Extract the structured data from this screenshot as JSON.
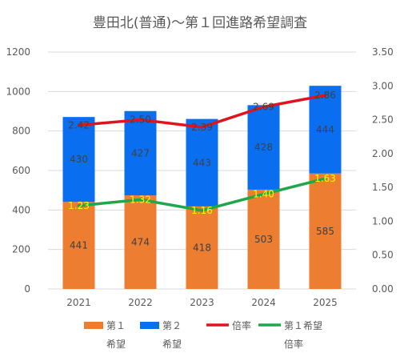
{
  "chart_data": {
    "type": "bar",
    "stacked": true,
    "title": "豊田北(普通)～第１回進路希望調査",
    "categories": [
      "2021",
      "2022",
      "2023",
      "2024",
      "2025"
    ],
    "series": [
      {
        "name": "第１希望",
        "axis": "left",
        "type": "bar",
        "color": "#ED7D31",
        "values": [
          441,
          474,
          418,
          503,
          585
        ]
      },
      {
        "name": "第２希望",
        "axis": "left",
        "type": "bar",
        "color": "#0A6EF0",
        "values": [
          430,
          427,
          443,
          428,
          444
        ]
      },
      {
        "name": "倍率",
        "axis": "right",
        "type": "line",
        "color": "#E0141E",
        "values": [
          2.42,
          2.5,
          2.39,
          2.69,
          2.86
        ],
        "labels": [
          "2.42",
          "2.50",
          "2.39",
          "2.69",
          "2.86"
        ]
      },
      {
        "name": "第１希望倍率",
        "axis": "right",
        "type": "line",
        "color": "#1EA84A",
        "values": [
          1.23,
          1.32,
          1.16,
          1.4,
          1.63
        ],
        "labels": [
          "1.23",
          "1.32",
          "1.16",
          "1.40",
          "1.63"
        ]
      }
    ],
    "y_left": {
      "min": 0,
      "max": 1200,
      "ticks": [
        "0",
        "200",
        "400",
        "600",
        "800",
        "1000",
        "1200"
      ]
    },
    "y_right": {
      "min": 0,
      "max": 3.5,
      "ticks": [
        "0.00",
        "0.50",
        "1.00",
        "1.50",
        "2.00",
        "2.50",
        "3.00",
        "3.50"
      ]
    },
    "grid": true,
    "legend_position": "bottom",
    "legend": [
      {
        "line1": "第１",
        "line2": "希望",
        "kind": "box",
        "color": "#ED7D31"
      },
      {
        "line1": "第２",
        "line2": "希望",
        "kind": "box",
        "color": "#0A6EF0"
      },
      {
        "line1": "倍率",
        "line2": "",
        "kind": "line",
        "color": "#E0141E"
      },
      {
        "line1": "第１希望",
        "line2": "倍率",
        "kind": "line",
        "color": "#1EA84A"
      }
    ]
  }
}
